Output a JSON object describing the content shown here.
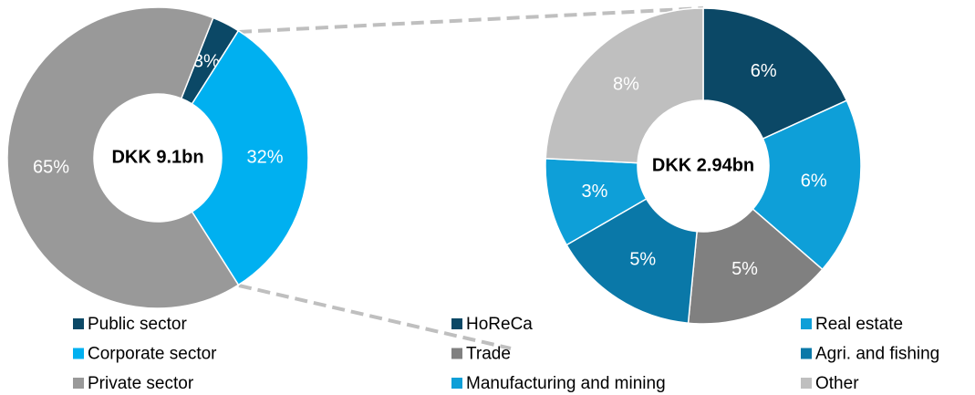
{
  "chart_data": [
    {
      "type": "pie",
      "center_label": "DKK 9.1bn",
      "categories": [
        "Public sector",
        "Corporate sector",
        "Private sector"
      ],
      "values": [
        3,
        32,
        65
      ],
      "value_labels": [
        "3%",
        "32%",
        "65%"
      ],
      "colors": [
        "#0b4866",
        "#00b0f0",
        "#999999"
      ]
    },
    {
      "type": "pie",
      "center_label": "DKK 2.94bn",
      "categories": [
        "HoReCa",
        "Real estate",
        "Trade",
        "Agri. and fishing",
        "Manufacturing and mining",
        "Other"
      ],
      "values": [
        6,
        6,
        5,
        5,
        3,
        8
      ],
      "value_labels": [
        "6%",
        "6%",
        "5%",
        "5%",
        "3%",
        "8%"
      ],
      "colors": [
        "#0b4866",
        "#0e9fd8",
        "#808080",
        "#0a78a8",
        "#0e9fd8",
        "#bfbfbf"
      ]
    }
  ]
}
